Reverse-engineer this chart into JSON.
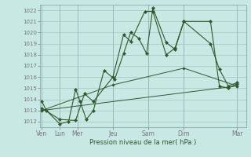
{
  "xlabel": "Pression niveau de la mer( hPa )",
  "ylim": [
    1011.5,
    1022.5
  ],
  "yticks": [
    1012,
    1013,
    1014,
    1015,
    1016,
    1017,
    1018,
    1019,
    1020,
    1021,
    1022
  ],
  "background_color": "#c8e8e4",
  "grid_color": "#9ababa",
  "line_color": "#2d5a2d",
  "xtick_pos": [
    0,
    1,
    2,
    4,
    6,
    8,
    11
  ],
  "xtick_lab": [
    "Ven",
    "Lun",
    "Mer",
    "Jeu",
    "Sam",
    "Dim",
    "Mar"
  ],
  "xlim": [
    -0.1,
    11.5
  ],
  "series1_x": [
    0,
    0.25,
    1.0,
    1.5,
    1.9,
    2.15,
    2.5,
    2.9,
    3.5,
    4.1,
    4.6,
    5.0,
    5.45,
    5.9,
    6.25,
    7.0,
    7.5,
    8.0,
    9.5,
    10.0,
    10.5,
    11.0
  ],
  "series1_y": [
    1013.8,
    1013.0,
    1011.8,
    1012.0,
    1014.9,
    1013.8,
    1012.2,
    1013.0,
    1016.6,
    1015.8,
    1018.1,
    1020.0,
    1019.5,
    1018.1,
    1022.2,
    1019.1,
    1018.5,
    1021.0,
    1019.0,
    1016.7,
    1015.2,
    1015.5
  ],
  "series2_x": [
    0,
    1.0,
    1.9,
    2.4,
    2.9,
    4.0,
    4.6,
    5.0,
    5.8,
    6.25,
    7.0,
    7.5,
    8.0,
    9.5,
    10.0,
    10.5,
    11.0
  ],
  "series2_y": [
    1013.2,
    1012.2,
    1012.1,
    1014.5,
    1013.8,
    1016.0,
    1019.8,
    1019.2,
    1021.9,
    1021.9,
    1018.0,
    1018.6,
    1021.0,
    1021.0,
    1015.2,
    1015.0,
    1015.4
  ],
  "series3_x": [
    0,
    11.0
  ],
  "series3_y": [
    1013.0,
    1015.2
  ],
  "series4_x": [
    0,
    4.0,
    8.0,
    11.0
  ],
  "series4_y": [
    1013.0,
    1015.3,
    1016.8,
    1015.2
  ]
}
